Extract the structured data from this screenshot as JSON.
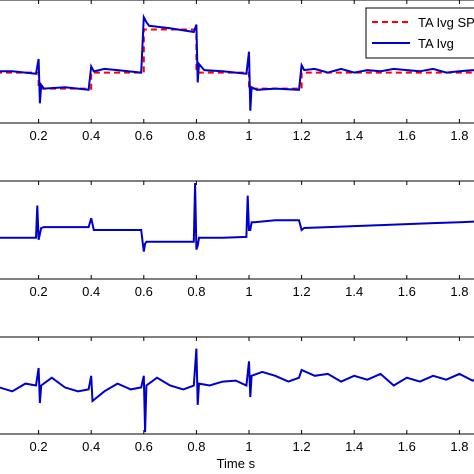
{
  "chart_data": [
    {
      "type": "line",
      "title": "",
      "xlabel": "",
      "ylabel": "",
      "xlim": [
        0.0,
        1.9
      ],
      "ylim": [
        0,
        1
      ],
      "x_ticks": [
        0.2,
        0.4,
        0.6,
        0.8,
        1.0,
        1.2,
        1.4,
        1.6,
        1.8
      ],
      "x_tick_labels": [
        "0.2",
        "0.4",
        "0.6",
        "0.8",
        "1",
        "1.2",
        "1.4",
        "1.6",
        "1.8"
      ],
      "legend": {
        "position": "top-right",
        "entries": [
          "TA Ivg SP",
          "TA Ivg"
        ]
      },
      "series": [
        {
          "name": "TA Ivg SP",
          "color": "#ff0000",
          "style": "dashed",
          "x": [
            0.0,
            0.2,
            0.2,
            0.4,
            0.4,
            0.6,
            0.6,
            0.8,
            0.8,
            1.0,
            1.0,
            1.2,
            1.2,
            1.9
          ],
          "y": [
            0.41,
            0.41,
            0.28,
            0.28,
            0.41,
            0.41,
            0.76,
            0.76,
            0.41,
            0.41,
            0.28,
            0.28,
            0.41,
            0.41
          ]
        },
        {
          "name": "TA Ivg",
          "color": "#0000cc",
          "style": "solid",
          "x": [
            0.0,
            0.1,
            0.19,
            0.2,
            0.205,
            0.21,
            0.22,
            0.3,
            0.39,
            0.4,
            0.41,
            0.45,
            0.5,
            0.59,
            0.6,
            0.61,
            0.62,
            0.7,
            0.79,
            0.8,
            0.805,
            0.81,
            0.83,
            0.9,
            0.99,
            1.0,
            1.005,
            1.01,
            1.03,
            1.1,
            1.19,
            1.2,
            1.21,
            1.25,
            1.3,
            1.35,
            1.4,
            1.45,
            1.5,
            1.55,
            1.6,
            1.65,
            1.7,
            1.75,
            1.8,
            1.85,
            1.9
          ],
          "y": [
            0.42,
            0.42,
            0.4,
            0.52,
            0.16,
            0.31,
            0.28,
            0.29,
            0.27,
            0.46,
            0.42,
            0.44,
            0.43,
            0.41,
            0.86,
            0.82,
            0.79,
            0.77,
            0.74,
            0.8,
            0.33,
            0.48,
            0.43,
            0.42,
            0.4,
            0.58,
            0.1,
            0.29,
            0.27,
            0.28,
            0.27,
            0.47,
            0.43,
            0.44,
            0.41,
            0.44,
            0.41,
            0.43,
            0.42,
            0.44,
            0.43,
            0.42,
            0.44,
            0.41,
            0.42,
            0.43,
            0.42
          ]
        }
      ]
    },
    {
      "type": "line",
      "title": "",
      "xlabel": "",
      "ylabel": "",
      "xlim": [
        0.0,
        1.9
      ],
      "ylim": [
        0,
        1
      ],
      "x_ticks": [
        0.2,
        0.4,
        0.6,
        0.8,
        1.0,
        1.2,
        1.4,
        1.6,
        1.8
      ],
      "x_tick_labels": [
        "0.2",
        "0.4",
        "0.6",
        "0.8",
        "1",
        "1.2",
        "1.4",
        "1.6",
        "1.8"
      ],
      "series": [
        {
          "name": "",
          "color": "#0000cc",
          "style": "solid",
          "x": [
            0.0,
            0.1,
            0.19,
            0.195,
            0.2,
            0.205,
            0.21,
            0.22,
            0.3,
            0.39,
            0.4,
            0.41,
            0.5,
            0.59,
            0.6,
            0.605,
            0.61,
            0.7,
            0.79,
            0.795,
            0.8,
            0.805,
            0.81,
            0.9,
            0.99,
            0.995,
            1.0,
            1.005,
            1.01,
            1.02,
            1.1,
            1.19,
            1.2,
            1.21,
            1.3,
            1.4,
            1.5,
            1.6,
            1.7,
            1.8,
            1.9
          ],
          "y": [
            0.42,
            0.42,
            0.42,
            0.75,
            0.4,
            0.46,
            0.52,
            0.53,
            0.53,
            0.53,
            0.62,
            0.5,
            0.5,
            0.5,
            0.28,
            0.36,
            0.38,
            0.38,
            0.38,
            0.98,
            0.3,
            0.34,
            0.42,
            0.42,
            0.43,
            0.85,
            0.5,
            0.5,
            0.58,
            0.58,
            0.6,
            0.6,
            0.5,
            0.52,
            0.53,
            0.54,
            0.55,
            0.56,
            0.57,
            0.58,
            0.59
          ]
        }
      ]
    },
    {
      "type": "line",
      "title": "",
      "xlabel": "Time s",
      "ylabel": "",
      "xlim": [
        0.0,
        1.9
      ],
      "ylim": [
        0,
        1
      ],
      "x_ticks": [
        0.2,
        0.4,
        0.6,
        0.8,
        1.0,
        1.2,
        1.4,
        1.6,
        1.8
      ],
      "x_tick_labels": [
        "0.2",
        "0.4",
        "0.6",
        "0.8",
        "1",
        "1.2",
        "1.4",
        "1.6",
        "1.8"
      ],
      "series": [
        {
          "name": "",
          "color": "#0000cc",
          "style": "solid",
          "x": [
            0.0,
            0.05,
            0.1,
            0.15,
            0.19,
            0.2,
            0.205,
            0.21,
            0.25,
            0.3,
            0.35,
            0.39,
            0.4,
            0.405,
            0.45,
            0.5,
            0.55,
            0.59,
            0.6,
            0.605,
            0.61,
            0.65,
            0.7,
            0.75,
            0.79,
            0.8,
            0.805,
            0.81,
            0.85,
            0.9,
            0.95,
            0.99,
            1.0,
            1.005,
            1.01,
            1.05,
            1.1,
            1.15,
            1.19,
            1.2,
            1.25,
            1.3,
            1.35,
            1.4,
            1.45,
            1.5,
            1.55,
            1.6,
            1.65,
            1.7,
            1.75,
            1.8,
            1.85,
            1.9
          ],
          "y": [
            0.45,
            0.48,
            0.44,
            0.52,
            0.5,
            0.68,
            0.32,
            0.5,
            0.58,
            0.48,
            0.44,
            0.46,
            0.6,
            0.34,
            0.44,
            0.52,
            0.46,
            0.48,
            0.6,
            0.02,
            0.5,
            0.58,
            0.5,
            0.46,
            0.5,
            0.88,
            0.3,
            0.52,
            0.5,
            0.54,
            0.55,
            0.5,
            0.75,
            0.38,
            0.6,
            0.64,
            0.6,
            0.54,
            0.58,
            0.66,
            0.6,
            0.62,
            0.54,
            0.6,
            0.56,
            0.62,
            0.5,
            0.58,
            0.54,
            0.6,
            0.56,
            0.62,
            0.55,
            0.6
          ]
        }
      ]
    }
  ]
}
